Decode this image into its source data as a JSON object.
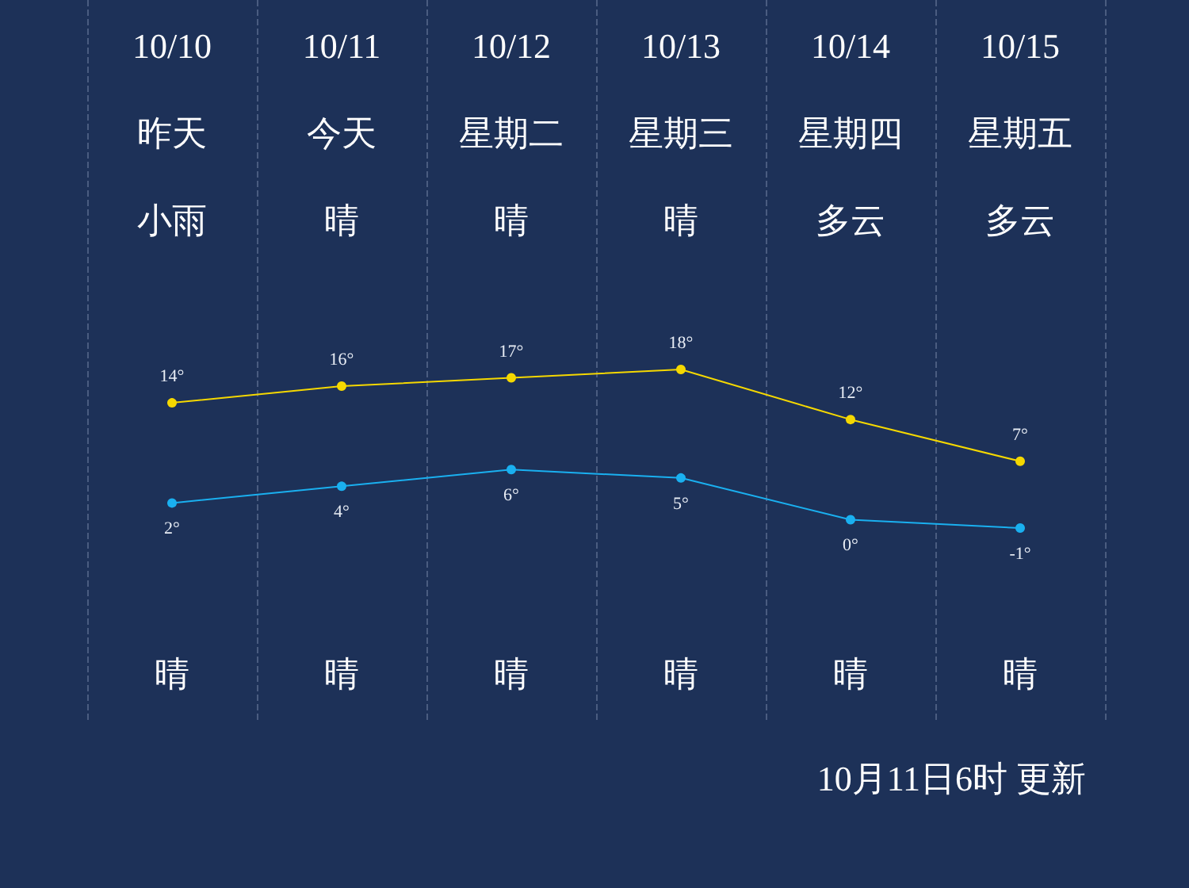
{
  "chart_data": {
    "type": "line",
    "categories": [
      "10/10",
      "10/11",
      "10/12",
      "10/13",
      "10/14",
      "10/15"
    ],
    "series": [
      {
        "color": "#f5d800",
        "values": [
          14,
          16,
          17,
          18,
          12,
          7
        ],
        "value_labels": [
          "14°",
          "16°",
          "17°",
          "18°",
          "12°",
          "7°"
        ]
      },
      {
        "color": "#1ab0f0",
        "values": [
          2,
          4,
          6,
          5,
          0,
          -1
        ],
        "value_labels": [
          "2°",
          "4°",
          "6°",
          "5°",
          "0°",
          "-1°"
        ]
      }
    ],
    "marker": "circle",
    "grid": "x",
    "annotations": [
      "昨天",
      "今天",
      "星期二",
      "星期三",
      "星期四",
      "星期五",
      "小雨",
      "晴",
      "晴",
      "晴",
      "多云",
      "多云",
      "晴",
      "晴",
      "晴",
      "晴",
      "晴",
      "晴",
      "10月11日6时 更新"
    ]
  }
}
